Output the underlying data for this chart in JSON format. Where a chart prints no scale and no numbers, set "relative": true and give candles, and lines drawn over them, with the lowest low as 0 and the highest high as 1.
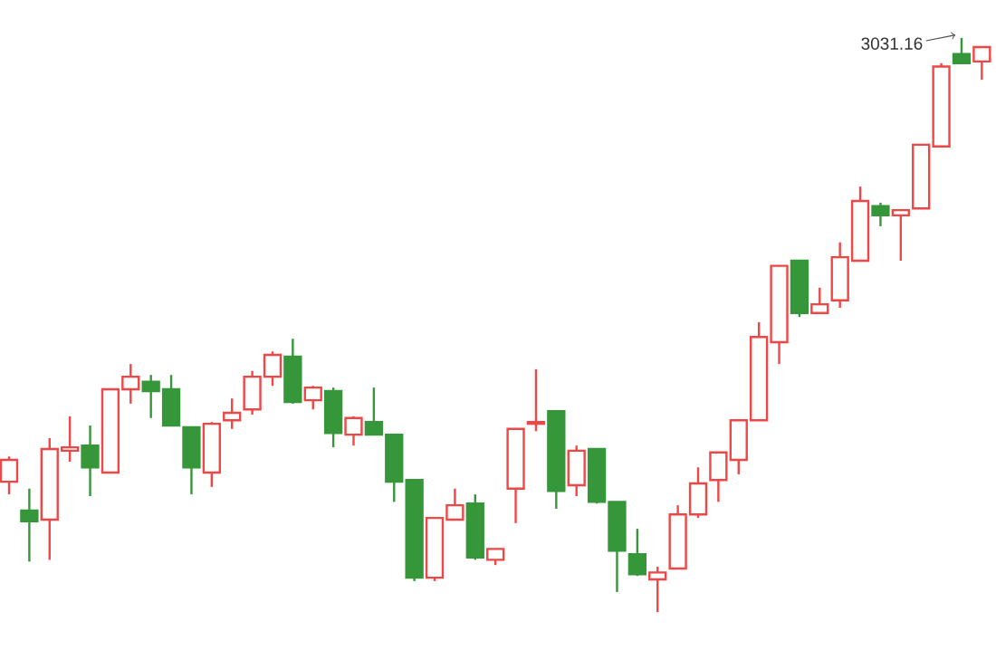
{
  "chart_data": {
    "type": "candlestick",
    "relative": true,
    "categories": [
      null,
      null,
      null,
      null,
      null,
      null,
      null,
      null,
      null,
      null,
      null,
      null,
      null,
      null,
      null,
      null,
      null,
      null,
      null,
      null,
      null,
      null,
      null,
      null,
      null,
      null,
      null,
      null,
      null,
      null,
      null,
      null,
      null,
      null,
      null,
      null,
      null,
      null,
      null,
      null,
      null,
      null,
      null,
      null,
      null,
      null,
      null,
      null,
      null
    ],
    "ohlc": [
      [
        0.227,
        0.271,
        0.205,
        0.265
      ],
      [
        0.177,
        0.215,
        0.088,
        0.158
      ],
      [
        0.161,
        0.303,
        0.091,
        0.284
      ],
      [
        0.281,
        0.341,
        0.262,
        0.287
      ],
      [
        0.29,
        0.325,
        0.202,
        0.252
      ],
      [
        0.243,
        0.388,
        0.243,
        0.388
      ],
      [
        0.388,
        0.432,
        0.363,
        0.41
      ],
      [
        0.401,
        0.413,
        0.338,
        0.385
      ],
      [
        0.388,
        0.413,
        0.325,
        0.325
      ],
      [
        0.322,
        0.322,
        0.205,
        0.252
      ],
      [
        0.243,
        0.331,
        0.218,
        0.328
      ],
      [
        0.334,
        0.372,
        0.319,
        0.347
      ],
      [
        0.353,
        0.42,
        0.344,
        0.41
      ],
      [
        0.41,
        0.454,
        0.394,
        0.448
      ],
      [
        0.445,
        0.476,
        0.363,
        0.366
      ],
      [
        0.369,
        0.394,
        0.353,
        0.391
      ],
      [
        0.385,
        0.391,
        0.287,
        0.312
      ],
      [
        0.309,
        0.341,
        0.29,
        0.338
      ],
      [
        0.331,
        0.391,
        0.309,
        0.309
      ],
      [
        0.309,
        0.309,
        0.192,
        0.227
      ],
      [
        0.23,
        0.23,
        0.054,
        0.06
      ],
      [
        0.06,
        0.164,
        0.054,
        0.164
      ],
      [
        0.161,
        0.215,
        0.161,
        0.186
      ],
      [
        0.189,
        0.205,
        0.091,
        0.095
      ],
      [
        0.091,
        0.11,
        0.082,
        0.11
      ],
      [
        0.215,
        0.319,
        0.155,
        0.319
      ],
      [
        0.328,
        0.423,
        0.315,
        0.331
      ],
      [
        0.35,
        0.35,
        0.18,
        0.211
      ],
      [
        0.221,
        0.29,
        0.202,
        0.281
      ],
      [
        0.284,
        0.284,
        0.189,
        0.192
      ],
      [
        0.192,
        0.192,
        0.035,
        0.107
      ],
      [
        0.101,
        0.145,
        0.063,
        0.066
      ],
      [
        0.057,
        0.079,
        0,
        0.069
      ],
      [
        0.076,
        0.186,
        0.076,
        0.17
      ],
      [
        0.17,
        0.252,
        0.164,
        0.224
      ],
      [
        0.23,
        0.278,
        0.192,
        0.278
      ],
      [
        0.265,
        0.334,
        0.24,
        0.334
      ],
      [
        0.334,
        0.505,
        0.334,
        0.479
      ],
      [
        0.47,
        0.603,
        0.432,
        0.603
      ],
      [
        0.612,
        0.612,
        0.514,
        0.521
      ],
      [
        0.521,
        0.565,
        0.521,
        0.536
      ],
      [
        0.543,
        0.644,
        0.53,
        0.618
      ],
      [
        0.612,
        0.741,
        0.612,
        0.716
      ],
      [
        0.707,
        0.713,
        0.672,
        0.691
      ],
      [
        0.691,
        0.7,
        0.612,
        0.7
      ],
      [
        0.703,
        0.814,
        0.703,
        0.814
      ],
      [
        0.811,
        0.956,
        0.811,
        0.95
      ],
      [
        0.972,
        1,
        0.956,
        0.956
      ],
      [
        0.959,
        0.984,
        0.927,
        0.984
      ]
    ],
    "colors": [
      "#f04646",
      "#36963a",
      "#f04646",
      "#f04646",
      "#36963a",
      "#f04646",
      "#f04646",
      "#36963a",
      "#36963a",
      "#36963a",
      "#f04646",
      "#f04646",
      "#f04646",
      "#f04646",
      "#36963a",
      "#f04646",
      "#36963a",
      "#f04646",
      "#36963a",
      "#36963a",
      "#36963a",
      "#f04646",
      "#f04646",
      "#36963a",
      "#f04646",
      "#f04646",
      "#f04646",
      "#36963a",
      "#f04646",
      "#36963a",
      "#36963a",
      "#36963a",
      "#f04646",
      "#f04646",
      "#f04646",
      "#f04646",
      "#f04646",
      "#f04646",
      "#f04646",
      "#36963a",
      "#f04646",
      "#f04646",
      "#f04646",
      "#36963a",
      "#f04646",
      "#f04646",
      "#f04646",
      "#36963a",
      "#f04646"
    ],
    "annotations": [
      "3031.16"
    ]
  }
}
